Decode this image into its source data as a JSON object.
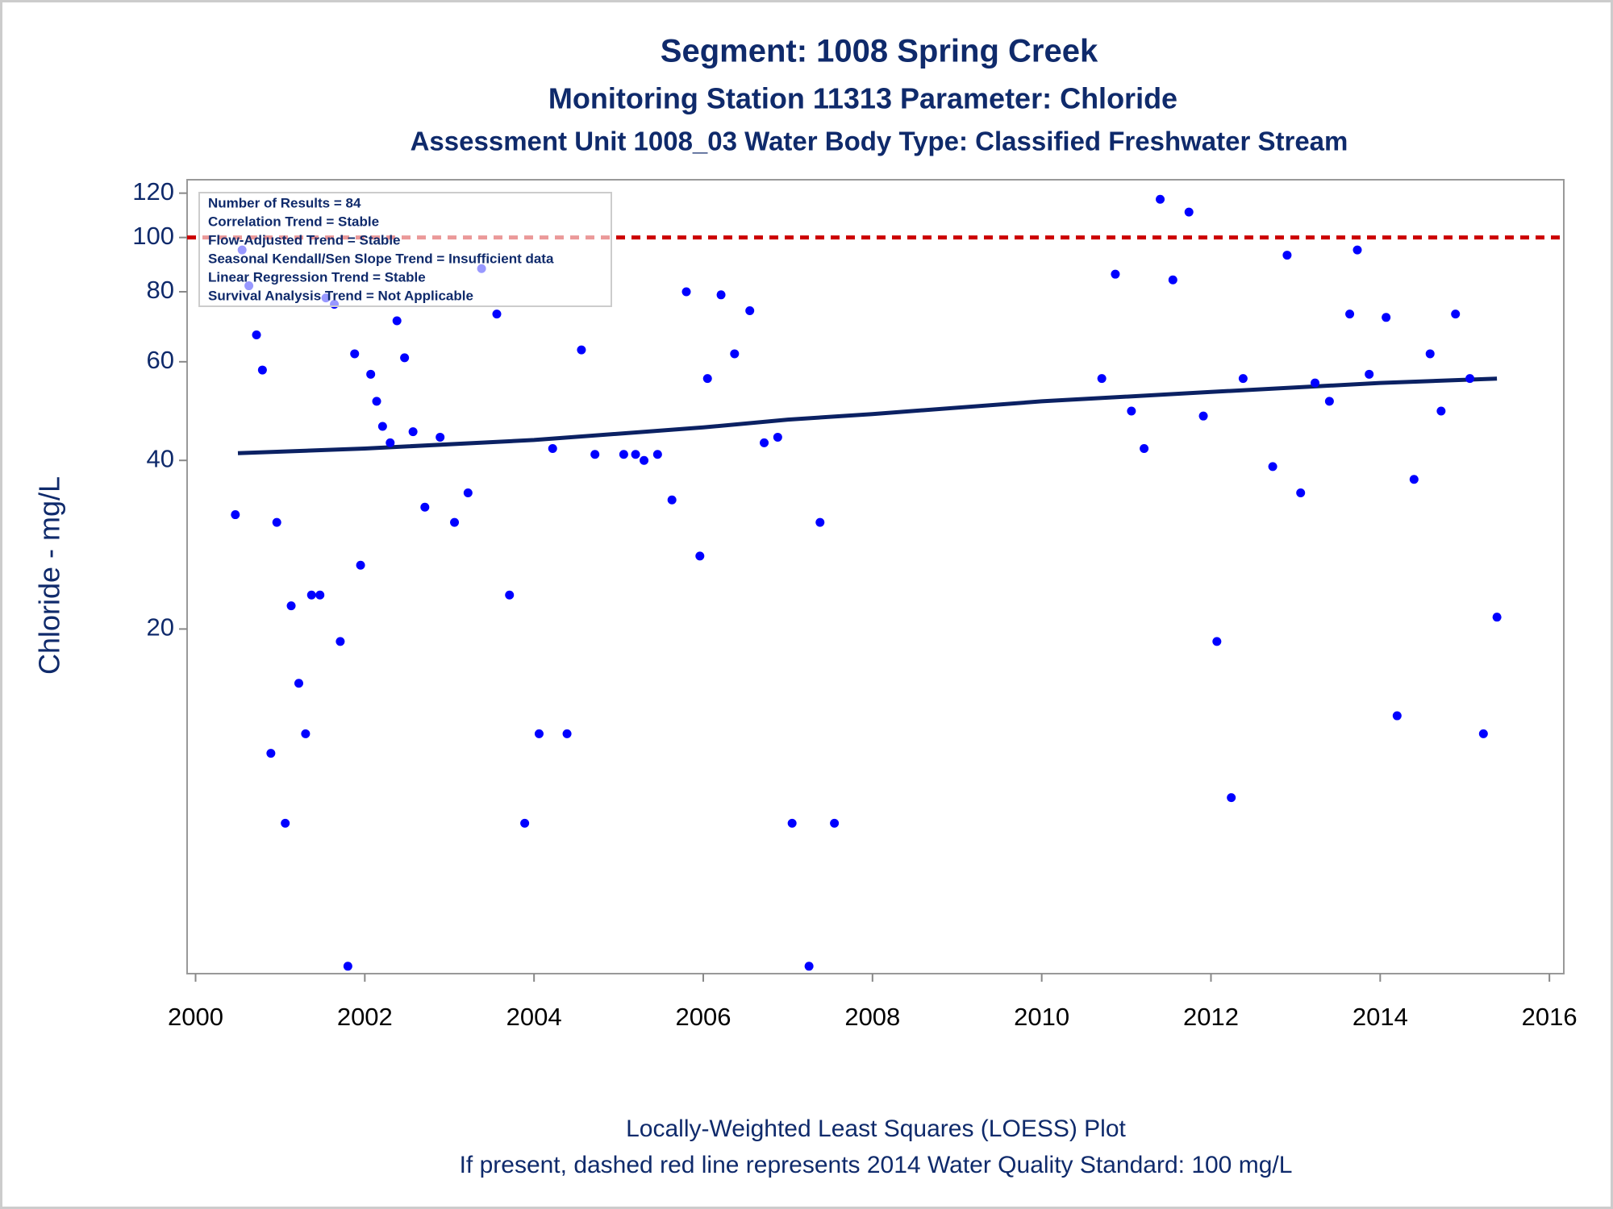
{
  "chart_data": {
    "type": "scatter",
    "title": "Segment: 1008  Spring Creek",
    "subtitle": "Monitoring Station 11313 Parameter: Chloride",
    "subtitle2": "Assessment Unit 1008_03   Water Body Type: Classified Freshwater Stream",
    "y_label": "Chloride - mg/L",
    "footnotes": [
      "Locally-Weighted Least Squares (LOESS) Plot",
      "If present, dashed red line represents 2014 Water Quality Standard: 100    mg/L"
    ],
    "annotations": [
      "Number of Results = 84",
      "Correlation Trend = Stable",
      "Flow-Adjusted Trend = Stable",
      "Seasonal Kendall/Sen Slope Trend = Insufficient data",
      "Linear Regression Trend = Stable",
      "Survival Analysis Trend = Not Applicable"
    ],
    "log_y": true,
    "xlim": [
      1999.9,
      2016.17
    ],
    "xticks": [
      2000,
      2002,
      2004,
      2006,
      2008,
      2010,
      2012,
      2014,
      2016
    ],
    "ylim": [
      4.85,
      126.8
    ],
    "yticks": [
      20,
      40,
      60,
      80,
      100,
      120
    ],
    "series": [
      {
        "color": "#0000ff",
        "x": [
          2000.47,
          2000.55,
          2000.63,
          2000.72,
          2000.79,
          2000.89,
          2000.96,
          2001.06,
          2001.13,
          2001.22,
          2001.3,
          2001.37,
          2001.47,
          2001.54,
          2001.64,
          2001.71,
          2001.8,
          2001.88,
          2001.95,
          2002.07,
          2002.14,
          2002.21,
          2002.3,
          2002.38,
          2002.47,
          2002.57,
          2002.71,
          2002.89,
          2003.06,
          2003.22,
          2003.38,
          2003.56,
          2003.71,
          2003.89,
          2004.06,
          2004.22,
          2004.39,
          2004.56,
          2004.72,
          2005.06,
          2005.2,
          2005.3,
          2005.46,
          2005.63,
          2005.8,
          2005.96,
          2006.05,
          2006.21,
          2006.37,
          2006.55,
          2006.72,
          2006.88,
          2007.05,
          2007.25,
          2007.38,
          2007.55,
          2010.71,
          2010.87,
          2011.06,
          2011.21,
          2011.4,
          2011.55,
          2011.74,
          2011.91,
          2012.07,
          2012.24,
          2012.38,
          2012.73,
          2012.9,
          2013.06,
          2013.23,
          2013.4,
          2013.64,
          2013.73,
          2013.87,
          2014.07,
          2014.2,
          2014.4,
          2014.59,
          2014.72,
          2014.89,
          2015.06,
          2015.22,
          2015.38
        ],
        "values": [
          32,
          95,
          82,
          67,
          58,
          12,
          31,
          9,
          22,
          16,
          13,
          23,
          23,
          78,
          76,
          19,
          5,
          62,
          26,
          57,
          51,
          46,
          43,
          71,
          61,
          45,
          33,
          44,
          31,
          35,
          88,
          73,
          23,
          9,
          13,
          42,
          13,
          63,
          41,
          41,
          41,
          40,
          41,
          34,
          80,
          27,
          56,
          79,
          62,
          74,
          43,
          44,
          9,
          5,
          31,
          9,
          56,
          86,
          49,
          42,
          117,
          84,
          111,
          48,
          19,
          10,
          56,
          39,
          93,
          35,
          55,
          51,
          73,
          95,
          57,
          72,
          14,
          37,
          62,
          49,
          73,
          56,
          13,
          21
        ]
      }
    ],
    "loess": {
      "color": "#0b2163",
      "x": [
        2000.5,
        2002,
        2004,
        2006,
        2007,
        2008,
        2010,
        2012,
        2014,
        2015.38
      ],
      "values": [
        41.2,
        42,
        43.5,
        45.8,
        47.3,
        48.4,
        51,
        53,
        55,
        56
      ]
    },
    "reference_line": {
      "value": 100,
      "color": "#cc0000"
    },
    "text_color": "#0f2a6b"
  }
}
